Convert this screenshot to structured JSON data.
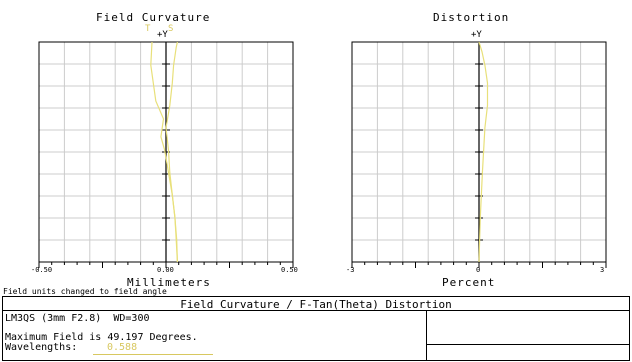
{
  "page": {
    "units_note": "Field units changed to field angle"
  },
  "info": {
    "title": "Field Curvature / F-Tan(Theta) Distortion",
    "lens": "LM3QS (3mm F2.8)  WD=300",
    "max_field": "Maximum Field is 49.197 Degrees.",
    "wavelengths_label": "Wavelengths:",
    "wavelength_value": "0.588"
  },
  "colors": {
    "curve": "#e8e07a",
    "grid": "#cccccc",
    "axis": "#000000"
  },
  "chart_data": [
    {
      "type": "line",
      "title": "Field Curvature",
      "xlabel": "Millimeters",
      "ylabel": "+Y",
      "xlim": [
        -0.5,
        0.5
      ],
      "ylim": [
        0,
        49.197
      ],
      "x_ticks": [
        "-0.50",
        "0.00",
        "0.50"
      ],
      "grid": true,
      "legend": [
        "T",
        "S"
      ],
      "series": [
        {
          "name": "T",
          "points": [
            [
              0.045,
              0
            ],
            [
              0.042,
              5
            ],
            [
              0.035,
              10
            ],
            [
              0.025,
              15
            ],
            [
              0.01,
              20
            ],
            [
              -0.005,
              25
            ],
            [
              -0.02,
              28
            ],
            [
              -0.01,
              32
            ],
            [
              -0.04,
              36
            ],
            [
              -0.05,
              40
            ],
            [
              -0.06,
              44
            ],
            [
              -0.055,
              49.197
            ]
          ]
        },
        {
          "name": "S",
          "points": [
            [
              0.045,
              0
            ],
            [
              0.04,
              5
            ],
            [
              0.035,
              10
            ],
            [
              0.025,
              15
            ],
            [
              0.015,
              20
            ],
            [
              0.01,
              25
            ],
            [
              0.0,
              30
            ],
            [
              0.015,
              35
            ],
            [
              0.025,
              40
            ],
            [
              0.03,
              44
            ],
            [
              0.035,
              46
            ],
            [
              0.04,
              48
            ],
            [
              0.045,
              49.197
            ]
          ]
        }
      ]
    },
    {
      "type": "line",
      "title": "Distortion",
      "xlabel": "Percent",
      "ylabel": "+Y",
      "xlim": [
        -3,
        3
      ],
      "ylim": [
        0,
        49.197
      ],
      "x_ticks": [
        "-3",
        "0",
        "3"
      ],
      "grid": true,
      "series": [
        {
          "points": [
            [
              0,
              0
            ],
            [
              0.03,
              10
            ],
            [
              0.08,
              20
            ],
            [
              0.14,
              30
            ],
            [
              0.2,
              35
            ],
            [
              0.2,
              40
            ],
            [
              0.14,
              44
            ],
            [
              0.07,
              47
            ],
            [
              0,
              49.197
            ]
          ]
        }
      ]
    }
  ]
}
